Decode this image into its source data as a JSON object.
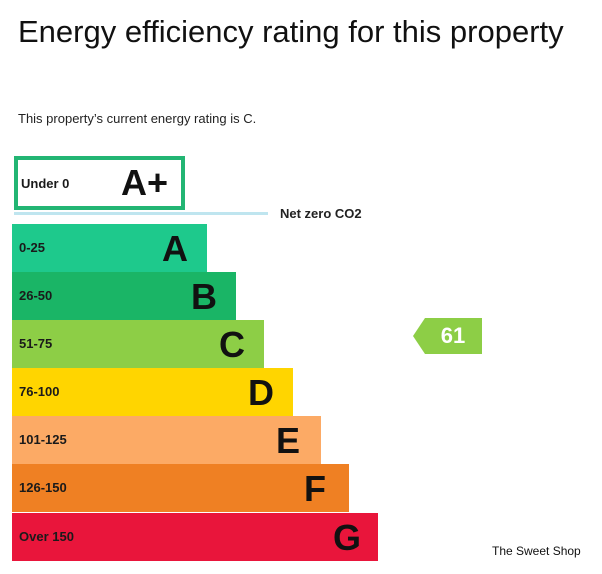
{
  "page": {
    "title": "Energy efficiency rating for this property",
    "subtitle": "This property’s current energy rating is C."
  },
  "rating_chart": {
    "aplus": {
      "range": "Under 0",
      "letter": "A+"
    },
    "net_zero_label": "Net zero CO2",
    "bands": [
      {
        "range": "0-25",
        "letter": "A",
        "color": "#1ec98c"
      },
      {
        "range": "26-50",
        "letter": "B",
        "color": "#1ab566"
      },
      {
        "range": "51-75",
        "letter": "C",
        "color": "#8dce46"
      },
      {
        "range": "76-100",
        "letter": "D",
        "color": "#ffd500"
      },
      {
        "range": "101-125",
        "letter": "E",
        "color": "#fcaa65"
      },
      {
        "range": "126-150",
        "letter": "F",
        "color": "#ef8023"
      },
      {
        "range": "Over 150",
        "letter": "G",
        "color": "#e9153b"
      }
    ],
    "current": {
      "value": "61",
      "band": "C",
      "color": "#8dce46"
    }
  },
  "watermark": "The Sweet Shop"
}
